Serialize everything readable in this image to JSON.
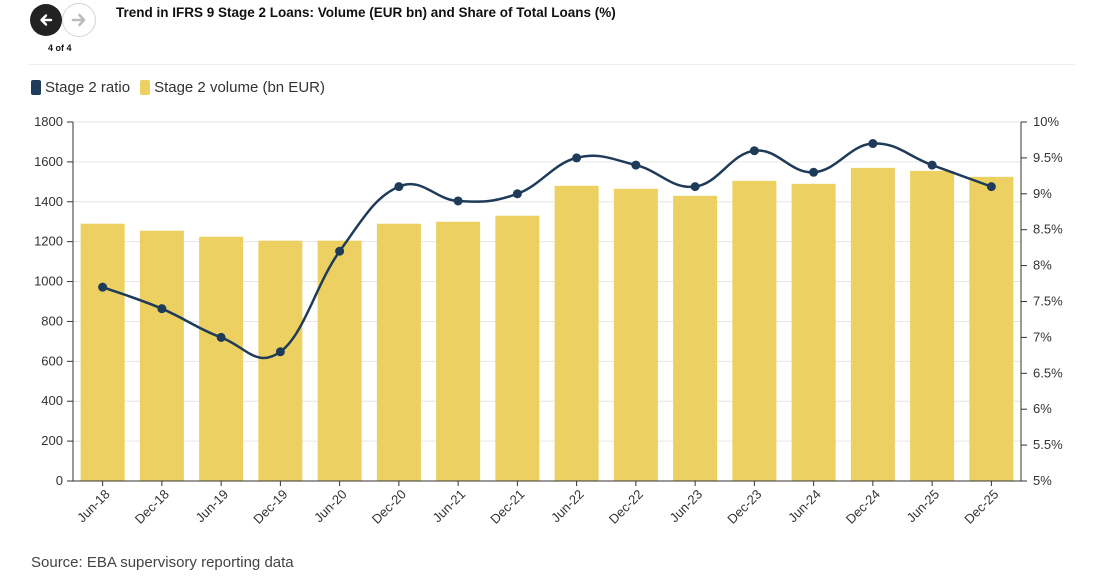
{
  "nav": {
    "counter": "4 of 4",
    "prev_icon": "arrow-left-icon",
    "next_icon": "arrow-right-icon"
  },
  "chart_data": {
    "type": "bar",
    "title": "Trend in IFRS 9 Stage 2 Loans: Volume (EUR bn) and Share of Total Loans (%)",
    "categories": [
      "Jun-18",
      "Dec-18",
      "Jun-19",
      "Dec-19",
      "Jun-20",
      "Dec-20",
      "Jun-21",
      "Dec-21",
      "Jun-22",
      "Dec-22",
      "Jun-23",
      "Dec-23",
      "Jun-24",
      "Dec-24",
      "Jun-25",
      "Dec-25"
    ],
    "series": [
      {
        "name": "Stage 2 ratio",
        "type": "line",
        "axis": "right",
        "color": "#1f3b5a",
        "values": [
          7.7,
          7.4,
          7.0,
          6.8,
          8.2,
          9.1,
          8.9,
          9.0,
          9.5,
          9.4,
          9.1,
          9.6,
          9.3,
          9.7,
          9.4,
          9.1
        ]
      },
      {
        "name": "Stage 2 volume (bn EUR)",
        "type": "bar",
        "axis": "left",
        "color": "#ecd162",
        "values": [
          1290,
          1255,
          1225,
          1205,
          1205,
          1290,
          1300,
          1330,
          1480,
          1465,
          1430,
          1505,
          1490,
          1570,
          1555,
          1525
        ]
      }
    ],
    "y_left": {
      "min": 0,
      "max": 1800,
      "ticks": [
        0,
        200,
        400,
        600,
        800,
        1000,
        1200,
        1400,
        1600,
        1800
      ]
    },
    "y_right": {
      "min": 5,
      "max": 10,
      "ticks": [
        "5%",
        "5.5%",
        "6%",
        "6.5%",
        "7%",
        "7.5%",
        "8%",
        "8.5%",
        "9%",
        "9.5%",
        "10%"
      ],
      "tick_values": [
        5,
        5.5,
        6,
        6.5,
        7,
        7.5,
        8,
        8.5,
        9,
        9.5,
        10
      ]
    },
    "legend_position": "top-left",
    "grid": true
  },
  "legend": {
    "ratio_label": "Stage 2 ratio",
    "volume_label": "Stage 2 volume (bn EUR)"
  },
  "source": "Source: EBA supervisory reporting data"
}
